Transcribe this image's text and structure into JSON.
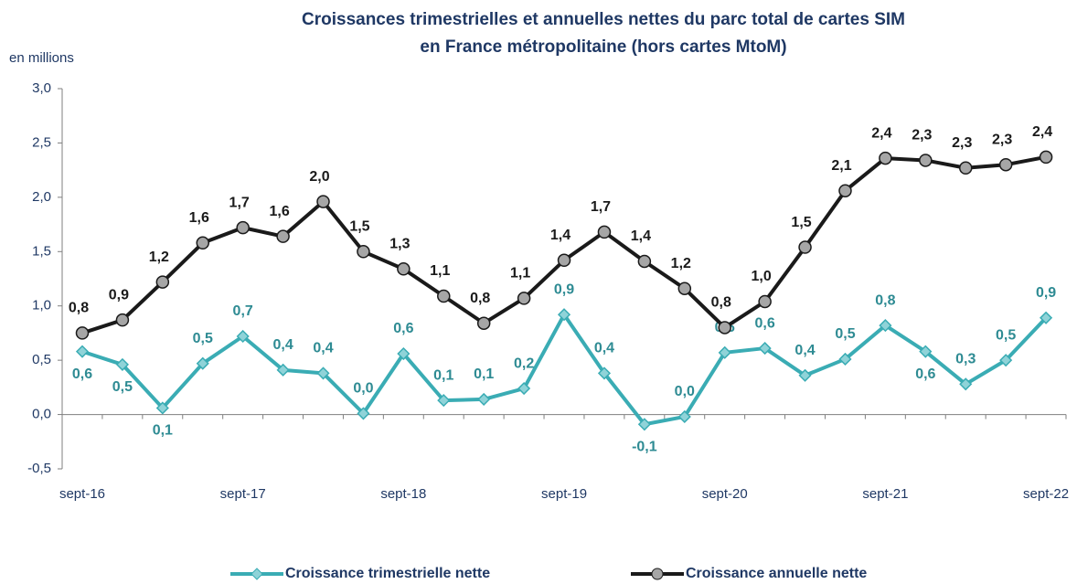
{
  "chart_data": {
    "type": "line",
    "title": "Croissances trimestrielles et annuelles nettes du parc total de cartes SIM",
    "subtitle": "en France métropolitaine (hors cartes MtoM)",
    "y_label": "en millions",
    "categories": [
      "sept-16",
      null,
      null,
      null,
      "sept-17",
      null,
      null,
      null,
      "sept-18",
      null,
      null,
      null,
      "sept-19",
      null,
      null,
      null,
      "sept-20",
      null,
      null,
      null,
      "sept-21",
      null,
      null,
      null,
      "sept-22"
    ],
    "ylim": [
      -0.5,
      3.0
    ],
    "yticks": [
      {
        "value": -0.5,
        "label": "-0,5"
      },
      {
        "value": 0,
        "label": "0,0"
      },
      {
        "value": 0.5,
        "label": "0,5"
      },
      {
        "value": 1.0,
        "label": "1,0"
      },
      {
        "value": 1.5,
        "label": "1,5"
      },
      {
        "value": 2.0,
        "label": "2,0"
      },
      {
        "value": 2.5,
        "label": "2,5"
      },
      {
        "value": 3.0,
        "label": "3,0"
      }
    ],
    "series": [
      {
        "name": "Croissance trimestrielle nette",
        "color": "#3aacb4",
        "values": [
          0.58,
          0.46,
          0.06,
          0.47,
          0.72,
          0.41,
          0.38,
          0.01,
          0.56,
          0.13,
          0.14,
          0.24,
          0.92,
          0.38,
          -0.09,
          -0.02,
          0.57,
          0.61,
          0.36,
          0.51,
          0.82,
          0.58,
          0.28,
          0.5,
          0.89
        ],
        "value_labels": [
          "0,6",
          "0,5",
          "0,1",
          "0,5",
          "0,7",
          "0,4",
          "0,4",
          "0,0",
          "0,6",
          "0,1",
          "0,1",
          "0,2",
          "0,9",
          "0,4",
          "-0,1",
          "0,0",
          "0,6",
          "0,6",
          "0,4",
          "0,5",
          "0,8",
          "0,6",
          "0,3",
          "0,5",
          "0,9"
        ]
      },
      {
        "name": "Croissance annuelle nette",
        "color": "#1a1a1a",
        "values": [
          0.75,
          0.87,
          1.22,
          1.58,
          1.72,
          1.64,
          1.96,
          1.5,
          1.34,
          1.09,
          0.84,
          1.07,
          1.42,
          1.68,
          1.41,
          1.16,
          0.8,
          1.04,
          1.54,
          2.06,
          2.36,
          2.34,
          2.27,
          2.3,
          2.37
        ],
        "value_labels": [
          "0,8",
          "0,9",
          "1,2",
          "1,6",
          "1,7",
          "1,6",
          "2,0",
          "1,5",
          "1,3",
          "1,1",
          "0,8",
          "1,1",
          "1,4",
          "1,7",
          "1,4",
          "1,2",
          "0,8",
          "1,0",
          "1,5",
          "2,1",
          "2,4",
          "2,3",
          "2,3",
          "2,3",
          "2,4"
        ]
      }
    ]
  }
}
